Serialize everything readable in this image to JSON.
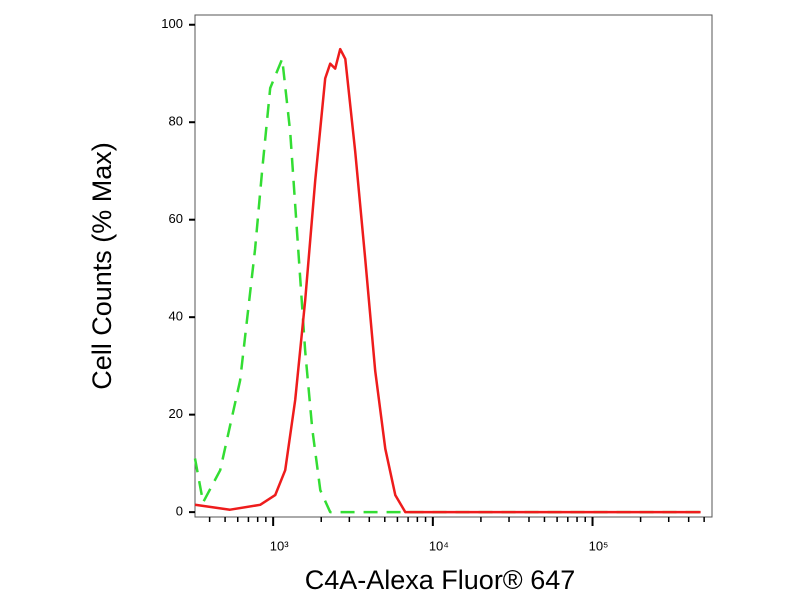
{
  "chart_data": {
    "type": "line",
    "xlabel": "C4A-Alexa Fluor® 647",
    "ylabel": "Cell Counts (% Max)",
    "xscale": "log",
    "xlim": [
      324,
      560000
    ],
    "xticks": [
      {
        "value": 1000,
        "label": "10³"
      },
      {
        "value": 10000,
        "label": "10⁴"
      },
      {
        "value": 100000,
        "label": "10⁵"
      }
    ],
    "xminorticks": [
      400,
      500,
      600,
      700,
      800,
      900,
      2000,
      3000,
      4000,
      5000,
      6000,
      7000,
      8000,
      9000,
      20000,
      30000,
      40000,
      50000,
      60000,
      70000,
      80000,
      90000,
      200000,
      300000,
      400000,
      500000
    ],
    "ylim": [
      -1,
      102
    ],
    "yticks": [
      0,
      20,
      40,
      60,
      80,
      100
    ],
    "series": [
      {
        "color": "#33dd33",
        "dash": true,
        "x": [
          324,
          364,
          466,
          621,
          771,
          853,
          958,
          1139,
          1278,
          1435,
          1588,
          1758,
          1973,
          2277,
          475000
        ],
        "values": [
          11,
          2,
          8.6,
          27,
          54,
          70,
          87,
          93,
          78,
          54,
          33,
          17,
          4.5,
          0,
          0
        ]
      },
      {
        "color": "#ee1c1c",
        "dash": false,
        "x": [
          324,
          537,
          829,
          1030,
          1190,
          1374,
          1588,
          1833,
          2118,
          2277,
          2447,
          2631,
          2828,
          3266,
          3773,
          4356,
          5035,
          5817,
          6724,
          475000
        ],
        "values": [
          1.5,
          0.5,
          1.5,
          3.5,
          8.6,
          23,
          43.5,
          68,
          89,
          92,
          91,
          95,
          93,
          74,
          52,
          29,
          13,
          3.5,
          0,
          0
        ]
      }
    ]
  }
}
